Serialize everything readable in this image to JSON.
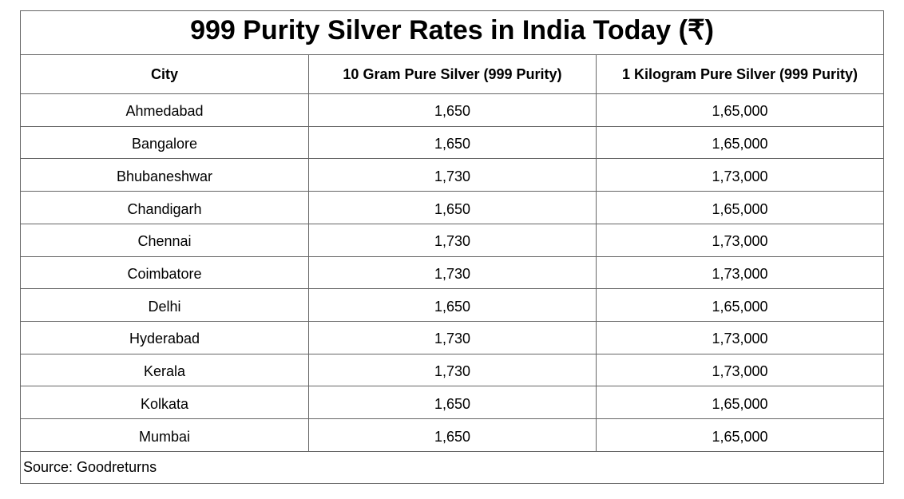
{
  "page": {
    "background_color": "#ffffff",
    "border_color": "#666666",
    "text_color": "#000000"
  },
  "table": {
    "title": "999 Purity Silver Rates in India Today (₹)",
    "columns": [
      "City",
      "10 Gram Pure Silver (999 Purity)",
      "1 Kilogram Pure Silver (999 Purity)"
    ],
    "rows": [
      [
        "Ahmedabad",
        "1,650",
        "1,65,000"
      ],
      [
        "Bangalore",
        "1,650",
        "1,65,000"
      ],
      [
        "Bhubaneshwar",
        "1,730",
        "1,73,000"
      ],
      [
        "Chandigarh",
        "1,650",
        "1,65,000"
      ],
      [
        "Chennai",
        "1,730",
        "1,73,000"
      ],
      [
        "Coimbatore",
        "1,730",
        "1,73,000"
      ],
      [
        "Delhi",
        "1,650",
        "1,65,000"
      ],
      [
        "Hyderabad",
        "1,730",
        "1,73,000"
      ],
      [
        "Kerala",
        "1,730",
        "1,73,000"
      ],
      [
        "Kolkata",
        "1,650",
        "1,65,000"
      ],
      [
        "Mumbai",
        "1,650",
        "1,65,000"
      ]
    ],
    "source": "Source: Goodreturns"
  },
  "chart_data": {
    "type": "table",
    "title": "999 Purity Silver Rates in India Today (₹)",
    "columns": [
      "City",
      "10 Gram Pure Silver (999 Purity)",
      "1 Kilogram Pure Silver (999 Purity)"
    ],
    "rows": [
      [
        "Ahmedabad",
        "1,650",
        "1,65,000"
      ],
      [
        "Bangalore",
        "1,650",
        "1,65,000"
      ],
      [
        "Bhubaneshwar",
        "1,730",
        "1,73,000"
      ],
      [
        "Chandigarh",
        "1,650",
        "1,65,000"
      ],
      [
        "Chennai",
        "1,730",
        "1,73,000"
      ],
      [
        "Coimbatore",
        "1,730",
        "1,73,000"
      ],
      [
        "Delhi",
        "1,650",
        "1,65,000"
      ],
      [
        "Hyderabad",
        "1,730",
        "1,73,000"
      ],
      [
        "Kerala",
        "1,730",
        "1,73,000"
      ],
      [
        "Kolkata",
        "1,650",
        "1,65,000"
      ],
      [
        "Mumbai",
        "1,650",
        "1,65,000"
      ]
    ],
    "values_10_gram": [
      1650,
      1650,
      1730,
      1650,
      1730,
      1730,
      1650,
      1730,
      1730,
      1650,
      1650
    ],
    "values_1_kilogram": [
      165000,
      165000,
      173000,
      165000,
      173000,
      173000,
      165000,
      173000,
      173000,
      165000,
      165000
    ],
    "source": "Source: Goodreturns"
  }
}
